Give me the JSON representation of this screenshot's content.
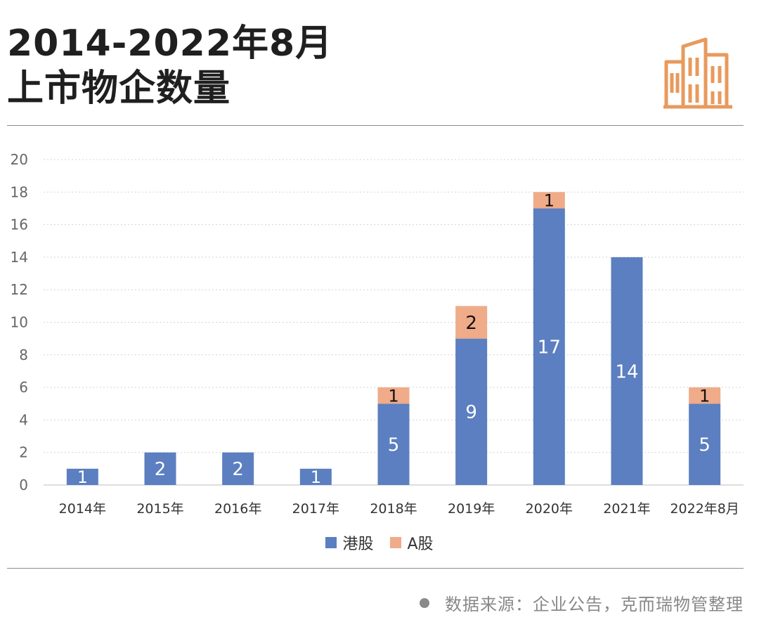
{
  "header": {
    "title_line1": "2014-2022年8月",
    "title_line2": "上市物企数量",
    "icon": "building-icon",
    "icon_color": "#e89a5c"
  },
  "chart_data": {
    "type": "bar",
    "stacked": true,
    "categories": [
      "2014年",
      "2015年",
      "2016年",
      "2017年",
      "2018年",
      "2019年",
      "2020年",
      "2021年",
      "2022年8月"
    ],
    "series": [
      {
        "name": "港股",
        "color": "#5b7fc0",
        "values": [
          1,
          2,
          2,
          1,
          5,
          9,
          17,
          14,
          5
        ]
      },
      {
        "name": "A股",
        "color": "#f0ab88",
        "values": [
          0,
          0,
          0,
          0,
          1,
          2,
          1,
          0,
          1
        ]
      }
    ],
    "ylim": [
      0,
      20
    ],
    "yticks": [
      0,
      2,
      4,
      6,
      8,
      10,
      12,
      14,
      16,
      18,
      20
    ],
    "grid": true,
    "legend_position": "bottom-center",
    "data_labels": true
  },
  "footer": {
    "source": "数据来源：企业公告，克而瑞物管整理"
  }
}
